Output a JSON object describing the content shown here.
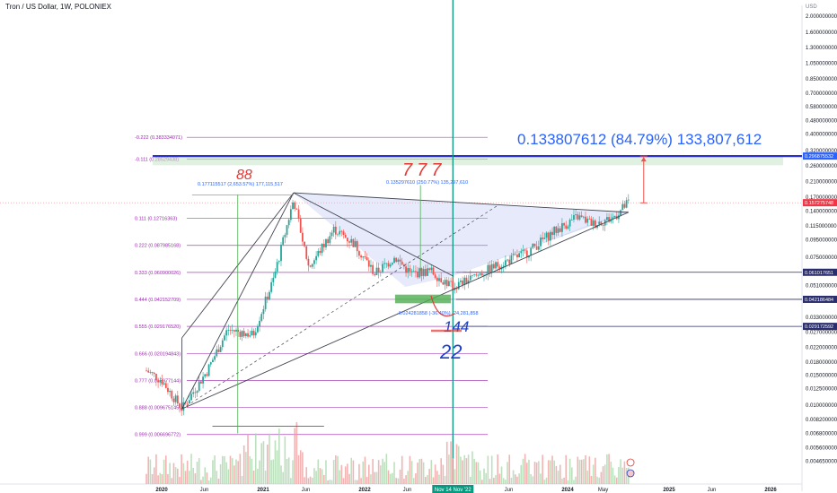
{
  "header": {
    "symbol_title": "Tron / US Dollar, 1W, POLONIEX",
    "currency": "USD"
  },
  "chart_data": {
    "type": "candlestick",
    "title": "Tron / US Dollar, 1W, POLONIEX",
    "y_scale": "log",
    "ylim": [
      0.0042,
      2.2
    ],
    "x_range": [
      "2019-09",
      "2026-03"
    ],
    "y_tick_labels": [
      "2.000000000",
      "1.600000000",
      "1.300000000",
      "1.050000000",
      "0.850000000",
      "0.700000000",
      "0.580000000",
      "0.480000000",
      "0.400000000",
      "0.320000000",
      "0.260000000",
      "0.210000000",
      "0.170000000",
      "0.140000000",
      "0.115000000",
      "0.095000000",
      "0.075000000",
      "0.061000000",
      "0.051000000",
      "0.042000000",
      "0.033000000",
      "0.027000000",
      "0.022000000",
      "0.018000000",
      "0.015000000",
      "0.012500000",
      "0.010000000",
      "0.008200000",
      "0.006800000",
      "0.005600000",
      "0.004650000"
    ],
    "x_tick_labels": [
      "2020",
      "Jun",
      "2021",
      "Jun",
      "2022",
      "Jun",
      "Nov 14 Nov '22",
      "Jun",
      "2024",
      "May",
      "2025",
      "Jun",
      "2026"
    ],
    "price_badges": [
      {
        "label": "0.296875532",
        "value": 0.2969,
        "color": "#2962ff"
      },
      {
        "label": "0.157275748",
        "value": 0.1573,
        "color": "#f23645"
      },
      {
        "label": "0.061017651",
        "value": 0.061,
        "color": "#2a2e6e"
      },
      {
        "label": "0.042186484",
        "value": 0.0422,
        "color": "#2a2e6e"
      },
      {
        "label": "0.029172592",
        "value": 0.0292,
        "color": "#2a2e6e"
      }
    ],
    "fib_levels": [
      {
        "label": "-0.222 (0.383334071)",
        "value": 0.3833
      },
      {
        "label": "-0.111 (0.28529438)",
        "value": 0.2853
      },
      {
        "label": "0.111 (0.12716363)",
        "value": 0.1272
      },
      {
        "label": "0.222 (0.087985168)",
        "value": 0.088
      },
      {
        "label": "0.333 (0.060900026)",
        "value": 0.0609
      },
      {
        "label": "0.444 (0.042152709)",
        "value": 0.0422
      },
      {
        "label": "0.555 (0.029176520)",
        "value": 0.0292
      },
      {
        "label": "0.666 (0.020194843)",
        "value": 0.0202
      },
      {
        "label": "0.777 (0.013977144)",
        "value": 0.014
      },
      {
        "label": "0.888 (0.009675145)",
        "value": 0.00968
      },
      {
        "label": "0.999 (0.006696772)",
        "value": 0.0067
      }
    ],
    "annotations": {
      "target_measure": "0.133807612 (84.79%) 133,807,612",
      "measure_1": "0.177115517 (2,653.57%) 177,115,517",
      "measure_2": "0.135297610 (250.77%) 135,297,610",
      "measure_3": "-0.024281858 (-36.40%) -24,281,858",
      "hand_1": "88",
      "hand_2": "777",
      "hand_3": "144",
      "hand_4": "22"
    },
    "key_prices": {
      "start_2020": 0.012,
      "low_2020": 0.0095,
      "ath_2021": 0.18,
      "low_2022": 0.044,
      "mid_2023": 0.075,
      "early_2024": 0.12,
      "mid_2024": 0.13,
      "last": 0.157
    },
    "grid": false,
    "legend": "none"
  },
  "colors": {
    "bull": "#26a69a",
    "bear": "#ef5350",
    "fib": "#9c27b0",
    "blue_band": "#2a2ed0",
    "vline": "#089981",
    "measure": "#2962ff",
    "hand": "#1e40c8",
    "hand_red": "#e53935"
  }
}
